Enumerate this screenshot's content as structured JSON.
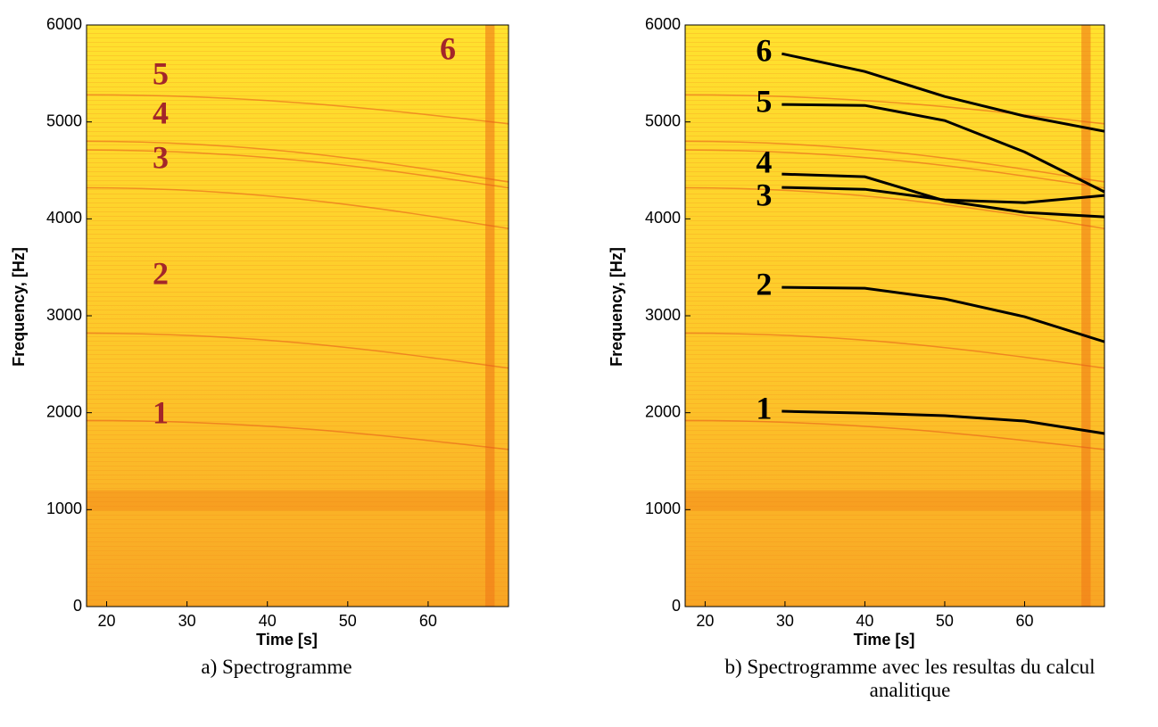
{
  "chart_data": [
    {
      "type": "spectrogram",
      "xlabel": "Time [s]",
      "ylabel": "Frequency, [Hz]",
      "xlim": [
        17.5,
        70
      ],
      "xticks": [
        20,
        30,
        40,
        50,
        60
      ],
      "ylim": [
        0,
        6000
      ],
      "yticks": [
        0,
        1000,
        2000,
        3000,
        4000,
        5000,
        6000
      ],
      "annotations": [
        "5",
        "4",
        "3",
        "2",
        "1",
        "6"
      ],
      "annotation_color": "#a3262a",
      "caption": "a)   Spectrogramme"
    },
    {
      "type": "line",
      "xlabel": "Time [s]",
      "ylabel": "Frequency, [Hz]",
      "xlim": [
        17.5,
        70
      ],
      "xticks": [
        20,
        30,
        40,
        50,
        60
      ],
      "ylim": [
        0,
        6000
      ],
      "yticks": [
        0,
        1000,
        2000,
        3000,
        4000,
        5000,
        6000
      ],
      "x": [
        29.6,
        40,
        50,
        60,
        70
      ],
      "series": [
        {
          "name": "1",
          "color": "#000000",
          "values": [
            2015,
            1996,
            1969,
            1914,
            1785
          ]
        },
        {
          "name": "2",
          "color": "#000000",
          "values": [
            3293,
            3284,
            3174,
            2990,
            2732
          ]
        },
        {
          "name": "3",
          "color": "#000000",
          "values": [
            4324,
            4305,
            4195,
            4167,
            4241
          ]
        },
        {
          "name": "4",
          "color": "#000000",
          "values": [
            4462,
            4434,
            4186,
            4066,
            4020
          ]
        },
        {
          "name": "5",
          "color": "#000000",
          "values": [
            5180,
            5170,
            5014,
            4690,
            4278
          ]
        },
        {
          "name": "6",
          "color": "#000000",
          "values": [
            5704,
            5520,
            5262,
            5060,
            4903
          ]
        }
      ],
      "caption": "b) Spectrogramme avec les resultas du calcul analitique"
    }
  ]
}
